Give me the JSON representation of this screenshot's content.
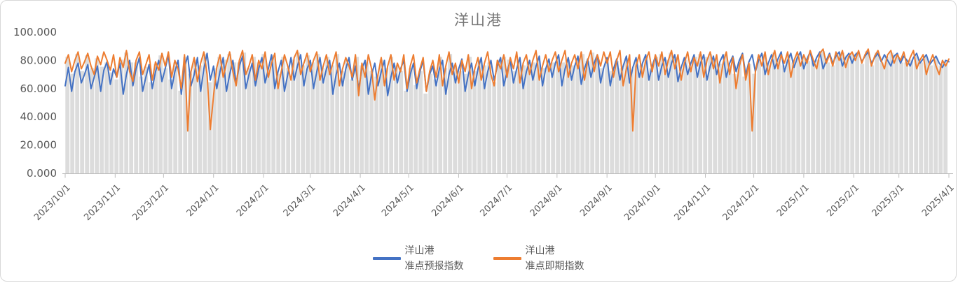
{
  "title": "洋山港",
  "legend": {
    "items": [
      {
        "line1": "洋山港",
        "line2": "准点预报指数",
        "color": "#4472C4"
      },
      {
        "line1": "洋山港",
        "line2": "准点即期指数",
        "color": "#ED7D31"
      }
    ]
  },
  "chart_data": {
    "type": "line",
    "title": "洋山港",
    "xlabel": "",
    "ylabel": "",
    "ylim": [
      0,
      100
    ],
    "y_ticks": [
      "0.000",
      "20.000",
      "40.000",
      "60.000",
      "80.000",
      "100.000"
    ],
    "y_tick_values": [
      0,
      20,
      40,
      60,
      80,
      100
    ],
    "x_tick_labels": [
      "2023/10/1",
      "2023/11/1",
      "2023/12/1",
      "2024/1/1",
      "2024/2/1",
      "2024/3/1",
      "2024/4/1",
      "2024/5/1",
      "2024/6/1",
      "2024/7/1",
      "2024/8/1",
      "2024/9/1",
      "2024/10/1",
      "2024/11/1",
      "2024/12/1",
      "2025/1/1",
      "2025/2/1",
      "2025/3/1",
      "2025/4/1"
    ],
    "x_tick_days": [
      0,
      31,
      61,
      92,
      123,
      152,
      183,
      213,
      244,
      274,
      305,
      336,
      366,
      397,
      427,
      458,
      489,
      517,
      548
    ],
    "total_days": 548,
    "step_days": 2,
    "grid": false,
    "legend_position": "bottom",
    "background_bars_color": "#dcdcdc",
    "axis_color": "#bfbfbf",
    "label_color": "#595959",
    "series": [
      {
        "name": "洋山港准点预报指数",
        "color": "#4472C4",
        "values": [
          62,
          75,
          58,
          72,
          78,
          64,
          70,
          77,
          60,
          68,
          76,
          58,
          73,
          79,
          63,
          74,
          68,
          78,
          56,
          70,
          80,
          62,
          74,
          82,
          58,
          68,
          77,
          60,
          72,
          80,
          65,
          74,
          84,
          60,
          72,
          80,
          56,
          76,
          83,
          62,
          70,
          82,
          58,
          74,
          85,
          66,
          76,
          60,
          72,
          82,
          58,
          70,
          80,
          64,
          76,
          83,
          60,
          70,
          78,
          62,
          74,
          82,
          64,
          74,
          84,
          60,
          72,
          80,
          58,
          70,
          82,
          66,
          76,
          84,
          62,
          74,
          80,
          60,
          72,
          82,
          64,
          74,
          80,
          56,
          70,
          78,
          62,
          74,
          82,
          66,
          76,
          60,
          74,
          80,
          56,
          70,
          78,
          62,
          72,
          80,
          55,
          68,
          78,
          64,
          74,
          80,
          58,
          70,
          78,
          60,
          72,
          80,
          58,
          70,
          76,
          62,
          74,
          80,
          56,
          70,
          78,
          64,
          74,
          81,
          58,
          70,
          78,
          62,
          74,
          82,
          60,
          72,
          80,
          66,
          76,
          82,
          62,
          72,
          80,
          64,
          74,
          82,
          60,
          72,
          80,
          66,
          76,
          83,
          62,
          74,
          81,
          68,
          78,
          84,
          62,
          74,
          82,
          66,
          76,
          83,
          63,
          74,
          81,
          68,
          78,
          84,
          64,
          75,
          82,
          62,
          74,
          81,
          66,
          76,
          83,
          64,
          75,
          82,
          68,
          78,
          84,
          66,
          76,
          83,
          66,
          76,
          82,
          68,
          78,
          84,
          65,
          75,
          82,
          70,
          78,
          84,
          68,
          78,
          84,
          66,
          76,
          83,
          70,
          79,
          84,
          68,
          78,
          83,
          72,
          80,
          85,
          70,
          79,
          84,
          72,
          80,
          85,
          70,
          78,
          84,
          74,
          81,
          86,
          72,
          80,
          85,
          75,
          82,
          86,
          74,
          81,
          86,
          76,
          82,
          86,
          74,
          80,
          85,
          78,
          83,
          86,
          76,
          82,
          85,
          78,
          84,
          86,
          79,
          83,
          86,
          78,
          82,
          85,
          79,
          84,
          80,
          76,
          83,
          85,
          78,
          83,
          80,
          76,
          82,
          85,
          78,
          81,
          84,
          77,
          80,
          83,
          78,
          75,
          80,
          79
        ]
      },
      {
        "name": "洋山港准点即期指数",
        "color": "#ED7D31",
        "values": [
          78,
          84,
          72,
          80,
          86,
          74,
          79,
          85,
          76,
          70,
          83,
          77,
          86,
          80,
          73,
          84,
          68,
          82,
          75,
          87,
          72,
          65,
          80,
          86,
          70,
          77,
          84,
          66,
          79,
          73,
          85,
          76,
          86,
          68,
          80,
          74,
          60,
          84,
          30,
          72,
          82,
          65,
          78,
          86,
          70,
          31,
          55,
          75,
          84,
          68,
          78,
          86,
          72,
          62,
          80,
          87,
          70,
          76,
          84,
          66,
          80,
          74,
          86,
          68,
          78,
          85,
          60,
          72,
          84,
          76,
          66,
          82,
          87,
          70,
          78,
          85,
          72,
          80,
          86,
          66,
          76,
          84,
          70,
          78,
          86,
          62,
          74,
          82,
          76,
          68,
          84,
          55,
          78,
          68,
          84,
          74,
          52,
          70,
          82,
          62,
          76,
          84,
          66,
          78,
          72,
          84,
          60,
          76,
          84,
          64,
          74,
          82,
          58,
          72,
          80,
          68,
          84,
          62,
          76,
          86,
          70,
          78,
          64,
          80,
          72,
          84,
          60,
          74,
          82,
          66,
          78,
          86,
          70,
          62,
          80,
          74,
          84,
          68,
          82,
          74,
          86,
          64,
          78,
          84,
          70,
          80,
          87,
          66,
          76,
          84,
          72,
          80,
          86,
          72,
          80,
          87,
          68,
          78,
          84,
          74,
          86,
          66,
          80,
          87,
          72,
          84,
          76,
          86,
          78,
          86,
          68,
          80,
          87,
          62,
          74,
          84,
          30,
          76,
          84,
          68,
          80,
          86,
          72,
          84,
          76,
          86,
          70,
          80,
          87,
          74,
          84,
          66,
          78,
          86,
          72,
          82,
          76,
          86,
          68,
          80,
          86,
          74,
          84,
          64,
          78,
          86,
          70,
          82,
          60,
          76,
          84,
          66,
          78,
          30,
          72,
          84,
          76,
          86,
          70,
          80,
          87,
          74,
          84,
          78,
          86,
          68,
          80,
          86,
          76,
          84,
          78,
          87,
          80,
          74,
          85,
          88,
          78,
          84,
          76,
          86,
          80,
          87,
          75,
          83,
          86,
          80,
          87,
          78,
          84,
          88,
          76,
          83,
          87,
          80,
          74,
          84,
          87,
          78,
          84,
          80,
          86,
          76,
          82,
          87,
          74,
          80,
          84,
          70,
          78,
          84,
          76,
          70,
          80,
          76,
          81
        ]
      }
    ]
  }
}
